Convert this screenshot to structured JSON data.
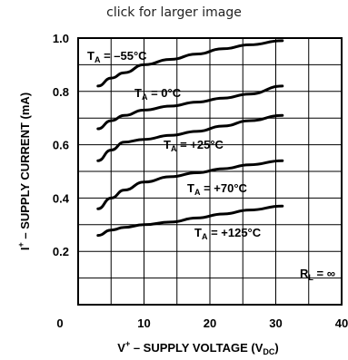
{
  "caption": "click for larger image",
  "chart_data": {
    "type": "line",
    "xlabel_main": "V",
    "xlabel_sup": "+",
    "xlabel_text": " – SUPPLY VOLTAGE (V",
    "xlabel_sub": "DC",
    "xlabel_close": ")",
    "ylabel_main": "I",
    "ylabel_sup": "+",
    "ylabel_text": " – SUPPLY CURRENT (mA)",
    "xlim": [
      0,
      40
    ],
    "ylim": [
      0,
      1.0
    ],
    "x_ticks": [
      "0",
      "10",
      "20",
      "30",
      "40"
    ],
    "y_ticks": [
      "0.2",
      "0.4",
      "0.6",
      "0.8",
      "1.0"
    ],
    "grid": true,
    "annotation": {
      "main": "R",
      "sub": "L",
      "rest": " = ∞"
    },
    "series": [
      {
        "name": "T_A = -55°C",
        "label_main": "T",
        "label_sub": "A",
        "label_rest": " = –55°C",
        "x": [
          3,
          5,
          7,
          10,
          14,
          18,
          22,
          26,
          31
        ],
        "y": [
          0.82,
          0.85,
          0.87,
          0.9,
          0.92,
          0.94,
          0.96,
          0.975,
          0.99
        ]
      },
      {
        "name": "T_A = 0°C",
        "label_main": "T",
        "label_sub": "A",
        "label_rest": " = 0°C",
        "x": [
          3,
          5,
          7,
          10,
          14,
          18,
          22,
          26,
          31
        ],
        "y": [
          0.66,
          0.69,
          0.71,
          0.73,
          0.745,
          0.76,
          0.775,
          0.79,
          0.82
        ]
      },
      {
        "name": "T_A = +25°C",
        "label_main": "T",
        "label_sub": "A",
        "label_rest": " = +25°C",
        "x": [
          3,
          5,
          7,
          10,
          14,
          18,
          22,
          26,
          31
        ],
        "y": [
          0.54,
          0.58,
          0.61,
          0.62,
          0.635,
          0.65,
          0.67,
          0.69,
          0.71
        ]
      },
      {
        "name": "T_A = +70°C",
        "label_main": "T",
        "label_sub": "A",
        "label_rest": " = +70°C",
        "x": [
          3,
          5,
          7,
          10,
          14,
          18,
          22,
          26,
          31
        ],
        "y": [
          0.36,
          0.4,
          0.43,
          0.46,
          0.48,
          0.495,
          0.51,
          0.525,
          0.54
        ]
      },
      {
        "name": "T_A = +125°C",
        "label_main": "T",
        "label_sub": "A",
        "label_rest": " = +125°C",
        "x": [
          3,
          5,
          7,
          10,
          14,
          18,
          22,
          26,
          31
        ],
        "y": [
          0.26,
          0.28,
          0.29,
          0.3,
          0.31,
          0.325,
          0.34,
          0.355,
          0.37
        ]
      }
    ]
  }
}
